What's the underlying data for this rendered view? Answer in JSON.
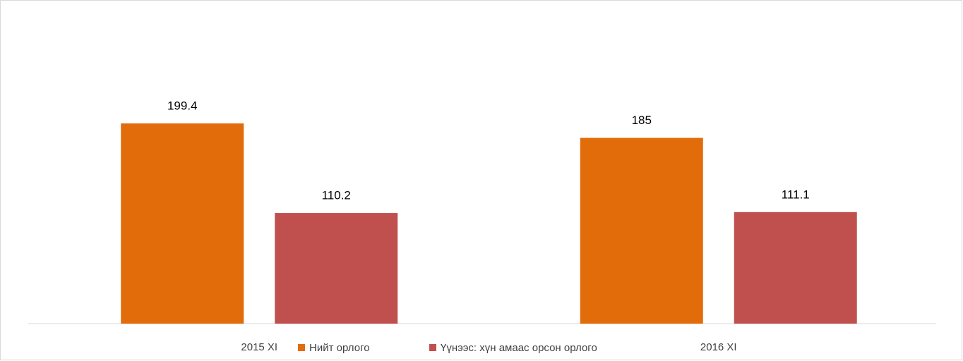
{
  "chart_data": {
    "type": "bar",
    "categories": [
      "2015 XI",
      "2016 XI"
    ],
    "series": [
      {
        "name": "Нийт орлого",
        "color": "#e36c0a",
        "values": [
          199.4,
          185
        ]
      },
      {
        "name": "Үүнээс: хүн амаас орсон орлого",
        "color": "#c0504d",
        "values": [
          110.2,
          111.1
        ]
      }
    ],
    "ylim": [
      0,
      250
    ],
    "legend": "bottom"
  }
}
